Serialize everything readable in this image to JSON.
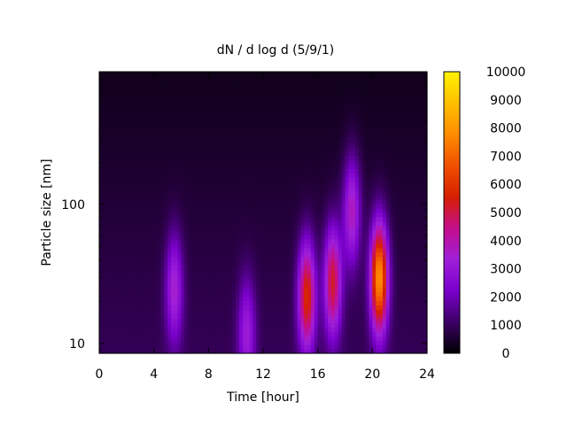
{
  "chart_data": {
    "type": "heatmap",
    "title": "dN / d log d (5/9/1)",
    "xlabel": "Time [hour]",
    "ylabel": "Particle size [nm]",
    "xlim": [
      0,
      24
    ],
    "ylim": [
      8.5,
      900
    ],
    "y_scale": "log",
    "x_ticks": [
      0,
      4,
      8,
      12,
      16,
      20,
      24
    ],
    "y_tick_labels": [
      {
        "value": 10,
        "label": "10"
      },
      {
        "value": 100,
        "label": "100"
      }
    ],
    "colorbar": {
      "range": [
        0,
        10000
      ],
      "ticks": [
        0,
        1000,
        2000,
        3000,
        4000,
        5000,
        6000,
        7000,
        8000,
        9000,
        10000
      ],
      "colors": [
        "#000000",
        "#3d0066",
        "#7a00cc",
        "#9f1fd9",
        "#c40e8c",
        "#d61f00",
        "#f05000",
        "#ff8c00",
        "#ffc000",
        "#fff200"
      ]
    },
    "background_level": 700,
    "features": [
      {
        "time": 5.5,
        "size_nm": 25,
        "peak_value": 2800
      },
      {
        "time": 10.8,
        "size_nm": 12,
        "peak_value": 2400
      },
      {
        "time": 15.2,
        "size_nm": 22,
        "peak_value": 5000
      },
      {
        "time": 17.1,
        "size_nm": 28,
        "peak_value": 4500
      },
      {
        "time": 18.5,
        "size_nm": 90,
        "peak_value": 3200
      },
      {
        "time": 20.5,
        "size_nm": 30,
        "peak_value": 7200
      }
    ],
    "grid": false,
    "legend": "colorbar-right"
  }
}
